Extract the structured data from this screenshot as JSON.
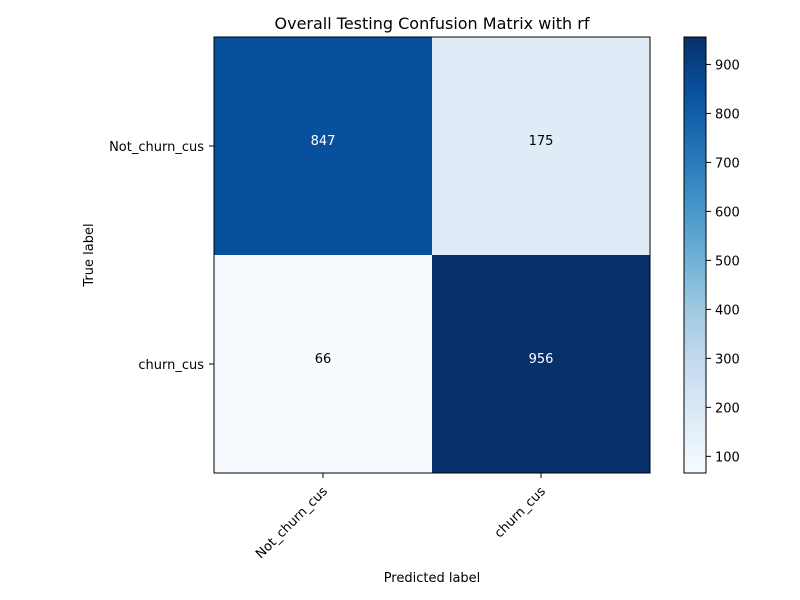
{
  "chart_data": {
    "type": "heatmap",
    "title": "Overall Testing Confusion Matrix with rf",
    "xlabel": "Predicted label",
    "ylabel": "True label",
    "x_categories": [
      "Not_churn_cus",
      "churn_cus"
    ],
    "y_categories": [
      "Not_churn_cus",
      "churn_cus"
    ],
    "values": [
      [
        847,
        175
      ],
      [
        66,
        956
      ]
    ],
    "colormap": "Blues",
    "colorbar": {
      "range": [
        66,
        956
      ],
      "ticks": [
        100,
        200,
        300,
        400,
        500,
        600,
        700,
        800,
        900
      ]
    },
    "colors": {
      "low": "#f7fbff",
      "high": "#08306b",
      "text_on_dark": "#ffffff",
      "text_on_light": "#000000"
    }
  }
}
